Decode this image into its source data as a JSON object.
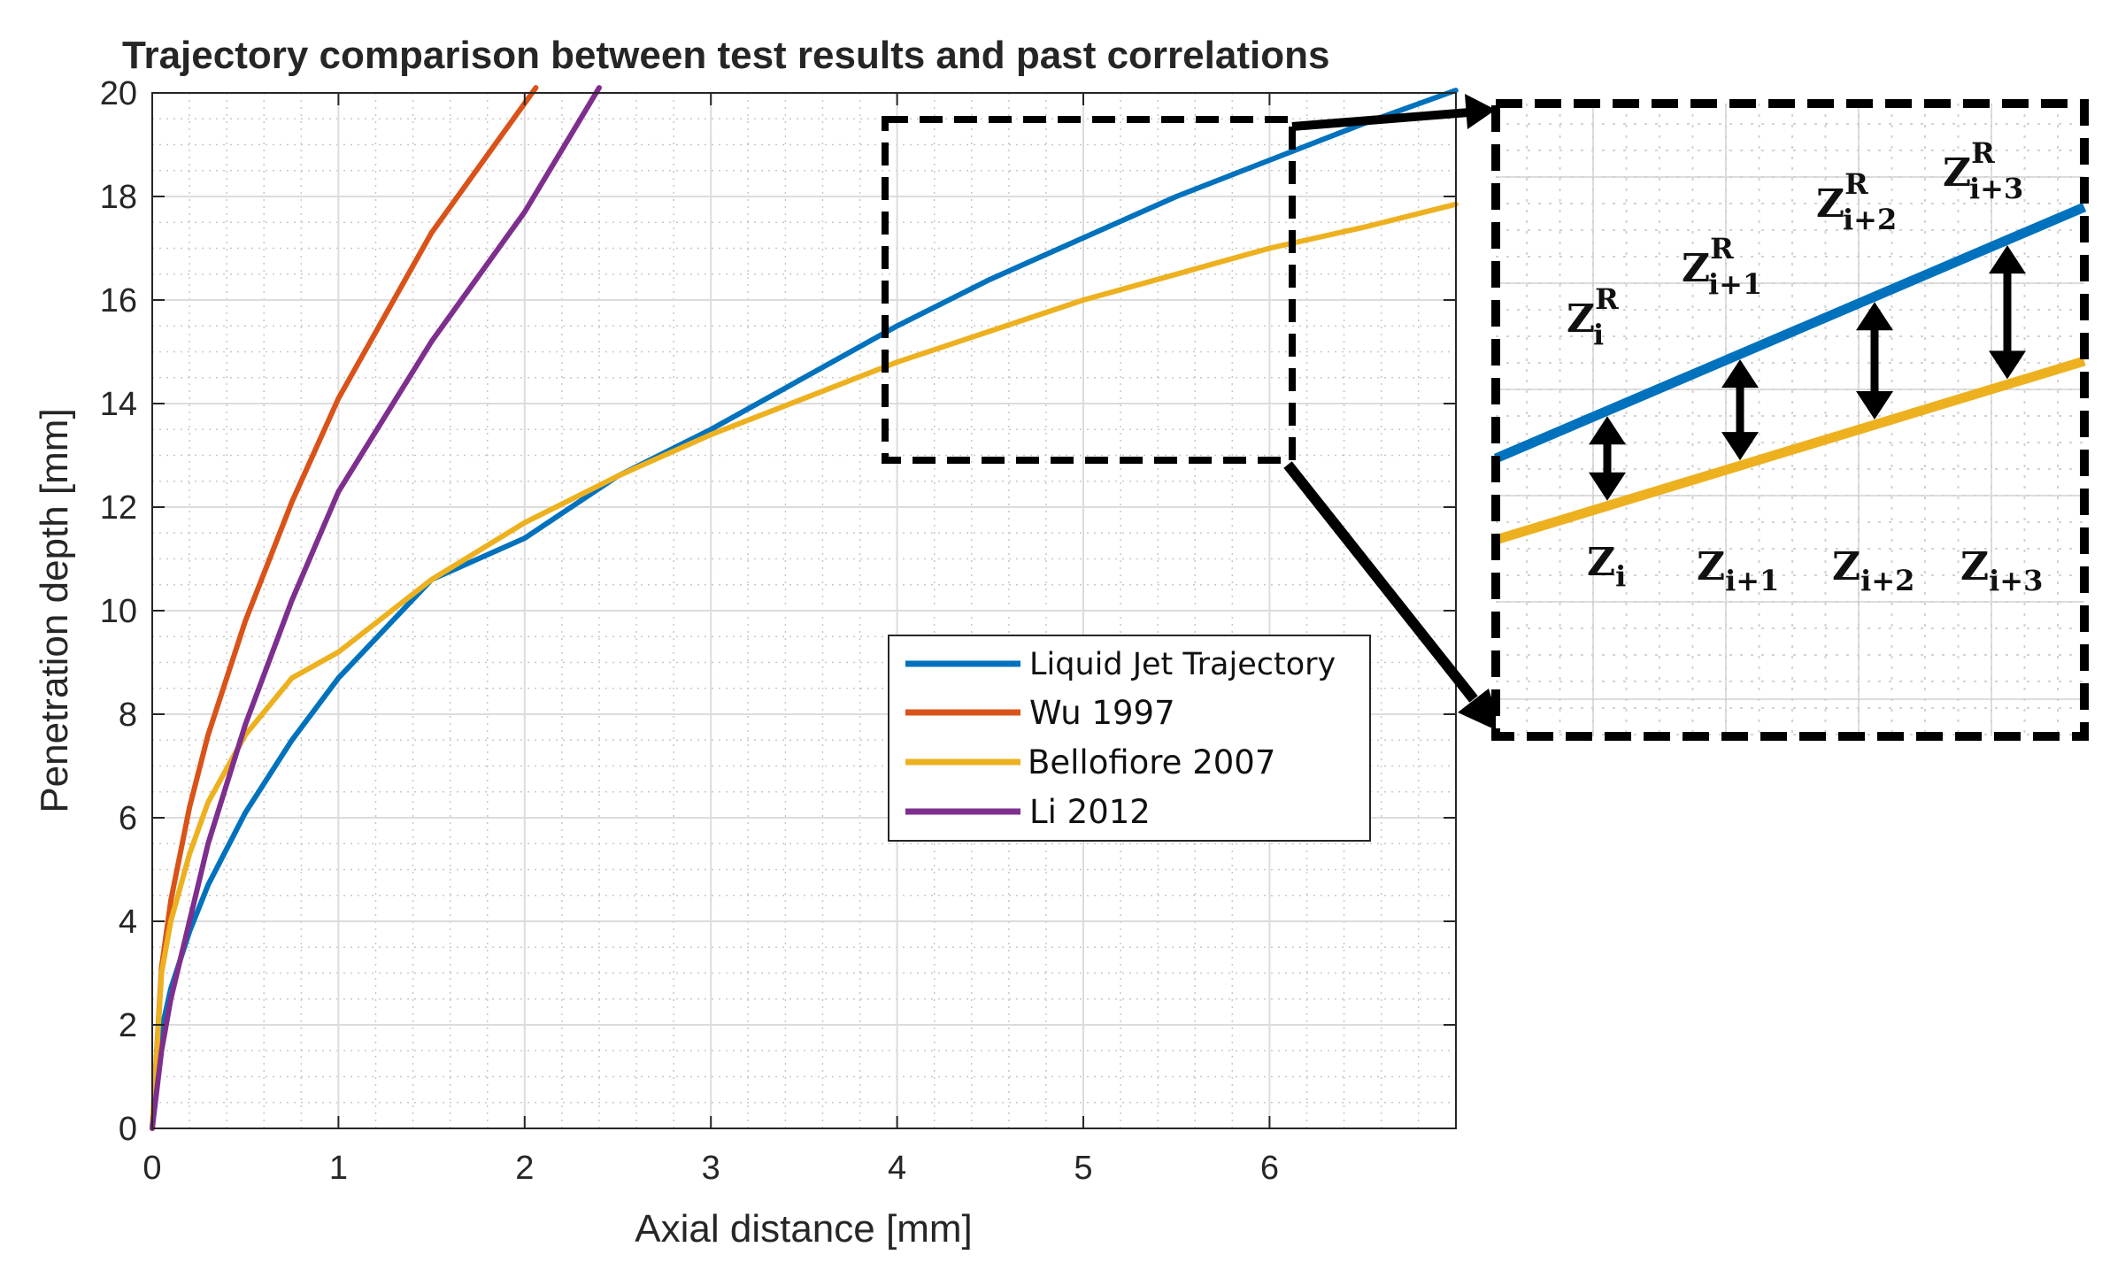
{
  "chart_data": {
    "type": "line",
    "title": "Trajectory comparison between test results and past correlations",
    "xlabel": "Axial distance [mm]",
    "ylabel": "Penetration depth [mm]",
    "xlim": [
      0,
      7
    ],
    "ylim": [
      0,
      20
    ],
    "xticks": [
      0,
      1,
      2,
      3,
      4,
      5,
      6
    ],
    "yticks": [
      0,
      2,
      4,
      6,
      8,
      10,
      12,
      14,
      16,
      18,
      20
    ],
    "grid": true,
    "minor_grid": true,
    "legend_location": "center-right",
    "series": [
      {
        "name": "Liquid Jet Trajectory",
        "color": "#0072BD",
        "points": [
          [
            0,
            0
          ],
          [
            0.05,
            1.9
          ],
          [
            0.1,
            2.7
          ],
          [
            0.2,
            3.8
          ],
          [
            0.3,
            4.7
          ],
          [
            0.5,
            6.1
          ],
          [
            0.75,
            7.5
          ],
          [
            1,
            8.7
          ],
          [
            1.5,
            10.6
          ],
          [
            2,
            11.4
          ],
          [
            2.5,
            12.6
          ],
          [
            3,
            13.5
          ],
          [
            3.5,
            14.5
          ],
          [
            4,
            15.5
          ],
          [
            4.5,
            16.4
          ],
          [
            5,
            17.2
          ],
          [
            5.5,
            18
          ],
          [
            6,
            18.7
          ],
          [
            6.5,
            19.4
          ],
          [
            7,
            20.05
          ]
        ]
      },
      {
        "name": "Wu 1997",
        "color": "#D95319",
        "points": [
          [
            0,
            0
          ],
          [
            0.05,
            3.1
          ],
          [
            0.1,
            4.4
          ],
          [
            0.2,
            6.2
          ],
          [
            0.3,
            7.6
          ],
          [
            0.5,
            9.8
          ],
          [
            0.75,
            12.1
          ],
          [
            1,
            14.1
          ],
          [
            1.5,
            17.3
          ],
          [
            2,
            19.8
          ],
          [
            2.06,
            20.1
          ]
        ]
      },
      {
        "name": "Bellofiore 2007",
        "color": "#EDB120",
        "points": [
          [
            0,
            0
          ],
          [
            0.05,
            3
          ],
          [
            0.1,
            4
          ],
          [
            0.2,
            5.3
          ],
          [
            0.3,
            6.3
          ],
          [
            0.5,
            7.6
          ],
          [
            0.75,
            8.7
          ],
          [
            1,
            9.2
          ],
          [
            1.5,
            10.6
          ],
          [
            2,
            11.7
          ],
          [
            2.5,
            12.6
          ],
          [
            3,
            13.4
          ],
          [
            3.5,
            14.1
          ],
          [
            4,
            14.8
          ],
          [
            4.5,
            15.4
          ],
          [
            5,
            16
          ],
          [
            5.5,
            16.5
          ],
          [
            6,
            17
          ],
          [
            6.5,
            17.4
          ],
          [
            7,
            17.85
          ]
        ]
      },
      {
        "name": "Li 2012",
        "color": "#7E2F8E",
        "points": [
          [
            0,
            0
          ],
          [
            0.05,
            1.5
          ],
          [
            0.1,
            2.5
          ],
          [
            0.2,
            4
          ],
          [
            0.3,
            5.5
          ],
          [
            0.5,
            7.8
          ],
          [
            0.75,
            10.2
          ],
          [
            1,
            12.3
          ],
          [
            1.5,
            15.2
          ],
          [
            2,
            17.7
          ],
          [
            2.4,
            20.1
          ]
        ]
      }
    ],
    "inset": {
      "zoom_region_x": [
        4,
        6.25
      ],
      "zoom_region_y": [
        13,
        19.4
      ],
      "upper_labels": [
        "Z_i^R",
        "Z_{i+1}^R",
        "Z_{i+2}^R",
        "Z_{i+3}^R"
      ],
      "lower_labels": [
        "Z_i",
        "Z_{i+1}",
        "Z_{i+2}",
        "Z_{i+3}"
      ]
    }
  },
  "legend": {
    "items": [
      {
        "label": "Liquid Jet Trajectory",
        "color": "#0072BD"
      },
      {
        "label": "Wu 1997",
        "color": "#D95319"
      },
      {
        "label": "Bellofiore 2007",
        "color": "#EDB120"
      },
      {
        "label": "Li 2012",
        "color": "#7E2F8E"
      }
    ]
  },
  "inset_labels": {
    "upper": [
      {
        "base": "Z",
        "sup": "R",
        "sub": "i"
      },
      {
        "base": "Z",
        "sup": "R",
        "sub": "i+1"
      },
      {
        "base": "Z",
        "sup": "R",
        "sub": "i+2"
      },
      {
        "base": "Z",
        "sup": "R",
        "sub": "i+3"
      }
    ],
    "lower": [
      {
        "base": "Z",
        "sub": "i"
      },
      {
        "base": "Z",
        "sub": "i+1"
      },
      {
        "base": "Z",
        "sub": "i+2"
      },
      {
        "base": "Z",
        "sub": "i+3"
      }
    ]
  }
}
